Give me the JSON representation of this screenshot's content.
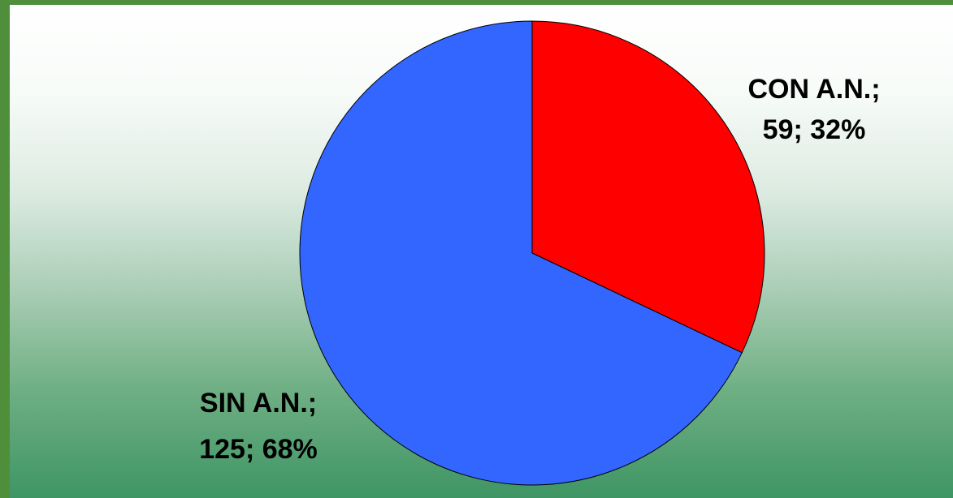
{
  "chart_data": {
    "type": "pie",
    "slices": [
      {
        "label": "CON A.N.",
        "value": 59,
        "percent": "32%",
        "color": "#ff0000",
        "label_line1": "CON A.N.;",
        "label_line2": "59; 32%"
      },
      {
        "label": "SIN A.N.",
        "value": 125,
        "percent": "68%",
        "color": "#3366ff",
        "label_line1": "SIN A.N.;",
        "label_line2": "125; 68%"
      }
    ],
    "title": "",
    "legend": "none"
  }
}
